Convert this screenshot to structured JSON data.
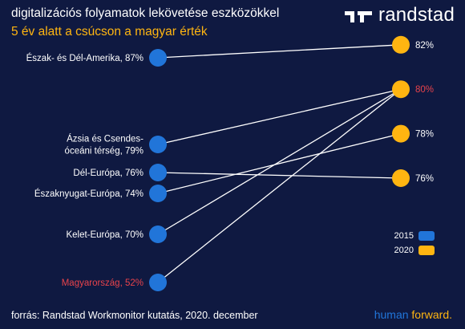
{
  "header": {
    "title": "digitalizációs folyamatok lekövetése eszközökkel",
    "subtitle": "5 év alatt a csúcson a magyar érték"
  },
  "brand": {
    "name": "randstad",
    "tagline_part1": "human",
    "tagline_part2": "forward."
  },
  "footer": {
    "source": "forrás: Randstad Workmonitor kutatás, 2020. december"
  },
  "colors": {
    "background": "#0f1941",
    "series_2015": "#2175d9",
    "series_2020": "#ffb511",
    "highlight": "#e8434b",
    "line": "#ffffff"
  },
  "chart_data": {
    "type": "slope",
    "categories": [
      "2015",
      "2020"
    ],
    "series": [
      {
        "name": "Észak- és Dél-Amerika",
        "label_lines": [
          "Észak- és Dél-Amerika, 87%"
        ],
        "v2015": 87,
        "v2020": 82,
        "label_2020": "82%",
        "highlight": false
      },
      {
        "name": "Ázsia és Csendes-óceáni térség",
        "label_lines": [
          "Ázsia és Csendes-",
          "óceáni térség, 79%"
        ],
        "v2015": 79,
        "v2020": 80,
        "label_2020": null,
        "highlight": false
      },
      {
        "name": "Dél-Európa",
        "label_lines": [
          "Dél-Európa, 76%"
        ],
        "v2015": 76,
        "v2020": 76,
        "label_2020": "76%",
        "highlight": false
      },
      {
        "name": "Északnyugat-Európa",
        "label_lines": [
          "Északnyugat-Európa, 74%"
        ],
        "v2015": 74,
        "v2020": 78,
        "label_2020": "78%",
        "highlight": false
      },
      {
        "name": "Kelet-Európa",
        "label_lines": [
          "Kelet-Európa, 70%"
        ],
        "v2015": 70,
        "v2020": 80,
        "label_2020": null,
        "highlight": false
      },
      {
        "name": "Magyarország",
        "label_lines": [
          "Magyarország, 52%"
        ],
        "v2015": 52,
        "v2020": 80,
        "label_2020": "80%",
        "highlight": true
      }
    ],
    "legend": [
      {
        "label": "2015",
        "color": "#2175d9"
      },
      {
        "label": "2020",
        "color": "#ffb511"
      }
    ],
    "legend_position": "right"
  }
}
